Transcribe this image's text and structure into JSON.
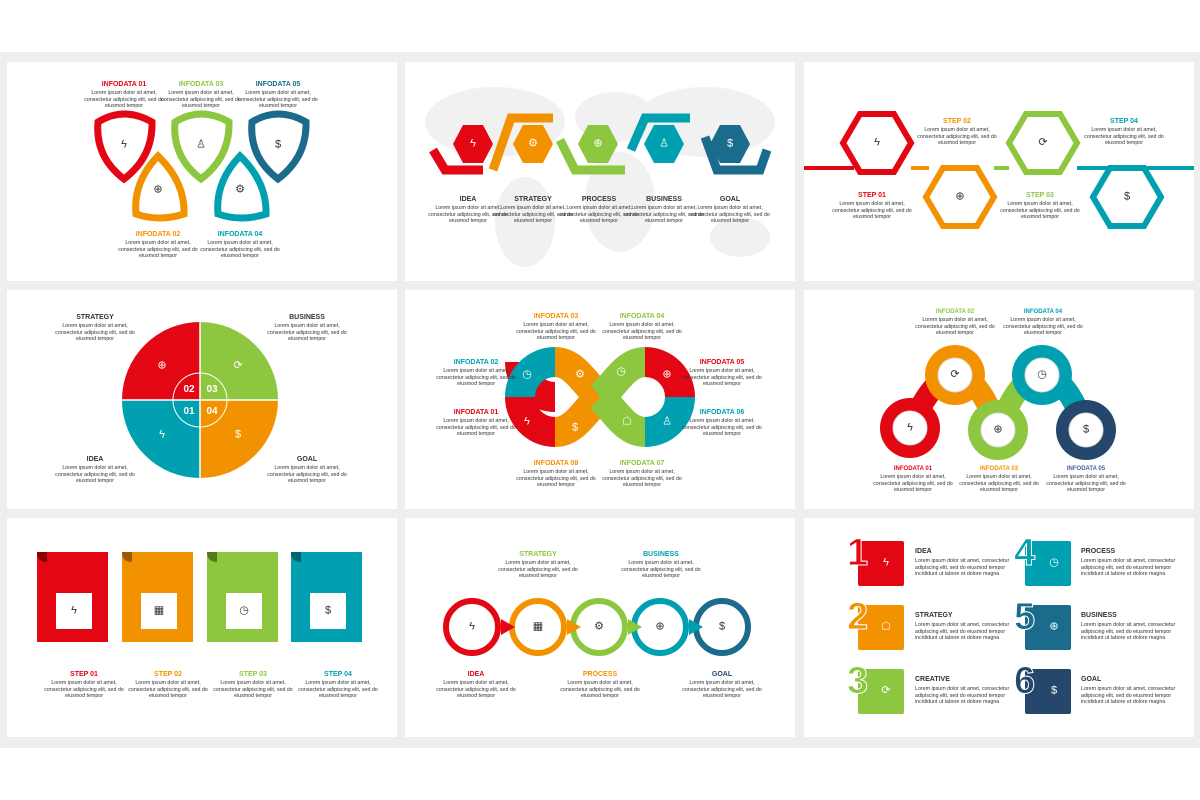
{
  "lorem": "Lorem ipsum dolor sit amet, consectetur adipiscing elit, sed do eiusmod tempor",
  "lorem_long": "Lorem ipsum dolor sit amet, consectetur adipiscing elit, sed do eiusmod tempor incididunt ut labore et dolore magna",
  "colors": {
    "red": "#e30613",
    "orange": "#f39200",
    "green": "#8dc63f",
    "teal": "#00a0b0",
    "blue": "#1b6b8c",
    "navy": "#24476b",
    "purple": "#4a5b9c"
  },
  "icons": {
    "bulb": "ϟ",
    "user": "♙",
    "dollar": "$",
    "globe": "⊕",
    "gear": "⚙",
    "clock": "◷",
    "refresh": "⟳",
    "calendar": "▦",
    "head": "☖"
  },
  "p1": {
    "labels": [
      "INFODATA 01",
      "INFODATA 02",
      "INFODATA 03",
      "INFODATA 04",
      "INFODATA 05"
    ]
  },
  "p2": {
    "labels": [
      "IDEA",
      "STRATEGY",
      "PROCESS",
      "BUSINESS",
      "GOAL"
    ]
  },
  "p3": {
    "labels": [
      "STEP 01",
      "STEP 02",
      "STEP 03",
      "STEP 04"
    ]
  },
  "p4": {
    "labels": [
      "STRATEGY",
      "BUSINESS",
      "IDEA",
      "GOAL"
    ],
    "numbers": [
      "02",
      "03",
      "01",
      "04"
    ]
  },
  "p5": {
    "labels": [
      "INFODATA 01",
      "INFODATA 02",
      "INFODATA 03",
      "INFODATA 04",
      "INFODATA 05",
      "INFODATA 06",
      "INFODATA 07",
      "INFODATA 08"
    ]
  },
  "p6": {
    "labels": [
      "INFODATA 01",
      "INFODATA 02",
      "INFODATA 03",
      "INFODATA 04",
      "INFODATA 05"
    ]
  },
  "p7": {
    "labels": [
      "STEP 01",
      "STEP 02",
      "STEP 03",
      "STEP 04"
    ]
  },
  "p8": {
    "labels": [
      "IDEA",
      "STRATEGY",
      "PROCESS",
      "BUSINESS",
      "GOAL"
    ]
  },
  "p9": {
    "numbers": [
      "1",
      "2",
      "3",
      "4",
      "5",
      "6"
    ],
    "labels": [
      "IDEA",
      "STRATEGY",
      "CREATIVE",
      "PROCESS",
      "BUSINESS",
      "GOAL"
    ]
  }
}
